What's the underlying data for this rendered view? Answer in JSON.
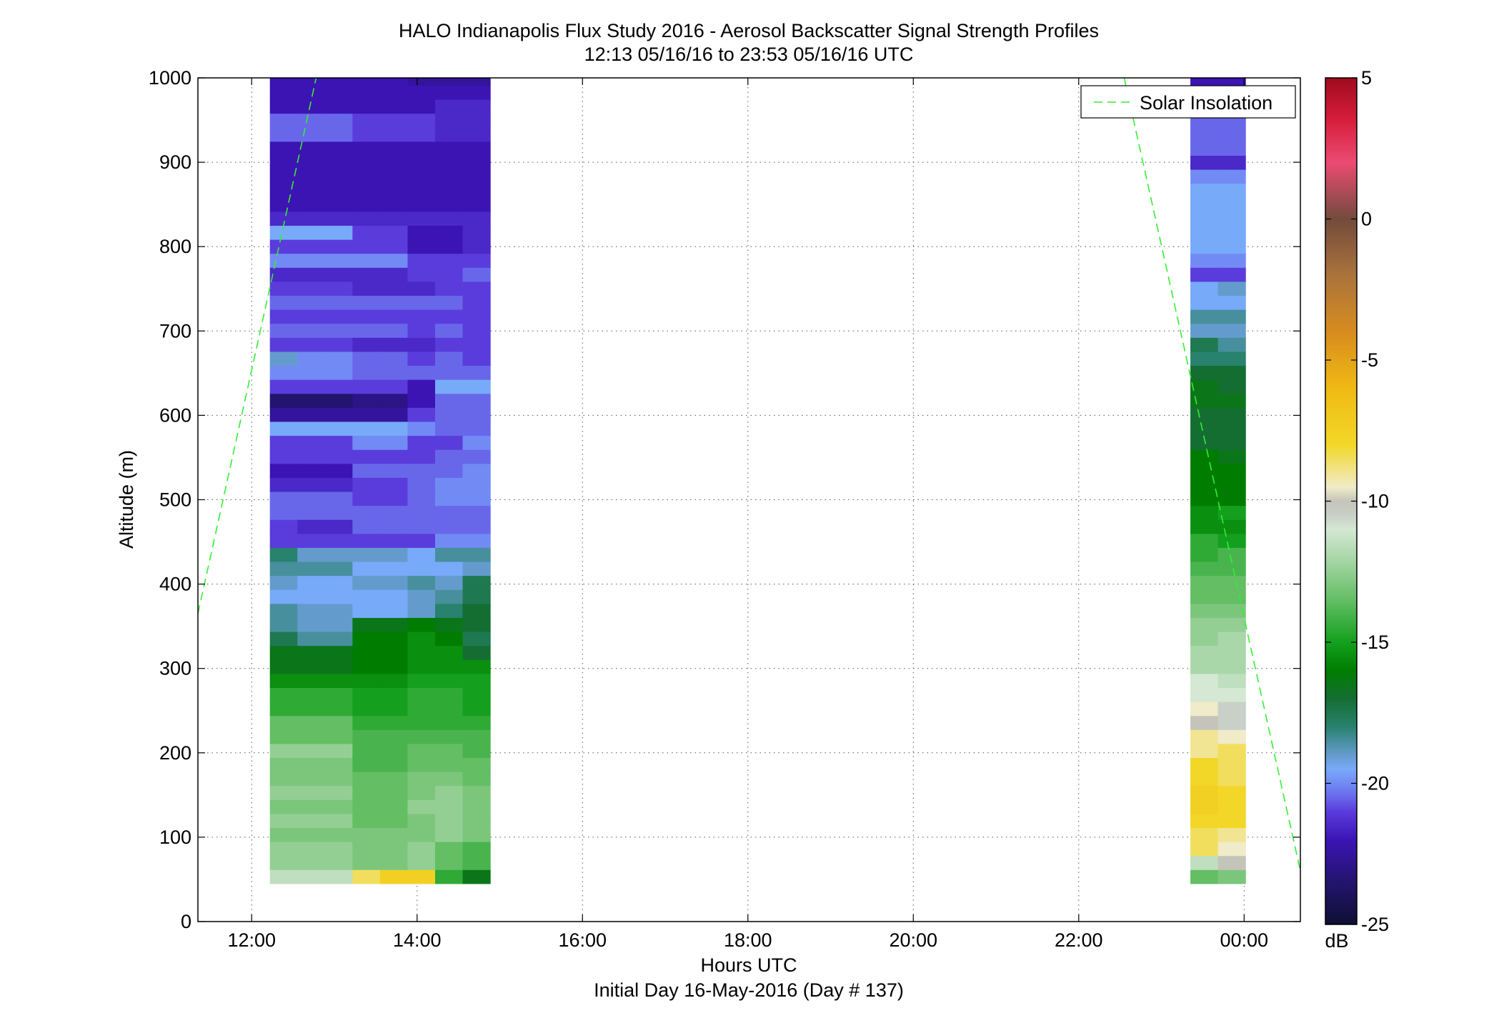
{
  "chart_data": {
    "type": "heatmap",
    "title": "HALO Indianapolis Flux Study 2016 - Aerosol Backscatter Signal Strength Profiles",
    "subtitle": "12:13 05/16/16 to 23:53 05/16/16  UTC",
    "xlabel": "Hours UTC",
    "xlabel2": "Initial Day 16-May-2016 (Day # 137)",
    "ylabel": "Altitude (m)",
    "xlim": [
      11.35,
      24.68
    ],
    "ylim": [
      0,
      1000
    ],
    "x_ticks": [
      {
        "value": 12,
        "label": "12:00"
      },
      {
        "value": 14,
        "label": "14:00"
      },
      {
        "value": 16,
        "label": "16:00"
      },
      {
        "value": 18,
        "label": "18:00"
      },
      {
        "value": 20,
        "label": "20:00"
      },
      {
        "value": 22,
        "label": "22:00"
      },
      {
        "value": 24,
        "label": "00:00"
      }
    ],
    "y_ticks": [
      {
        "value": 0,
        "label": "0"
      },
      {
        "value": 100,
        "label": "100"
      },
      {
        "value": 200,
        "label": "200"
      },
      {
        "value": 300,
        "label": "300"
      },
      {
        "value": 400,
        "label": "400"
      },
      {
        "value": 500,
        "label": "500"
      },
      {
        "value": 600,
        "label": "600"
      },
      {
        "value": 700,
        "label": "700"
      },
      {
        "value": 800,
        "label": "800"
      },
      {
        "value": 900,
        "label": "900"
      },
      {
        "value": 1000,
        "label": "1000"
      }
    ],
    "grid": true,
    "colorbar": {
      "unit": "dB",
      "range": [
        -25,
        5
      ],
      "ticks": [
        {
          "value": 5,
          "label": "5"
        },
        {
          "value": 0,
          "label": "0"
        },
        {
          "value": -5,
          "label": "-5"
        },
        {
          "value": -10,
          "label": "-10"
        },
        {
          "value": -15,
          "label": "-15"
        },
        {
          "value": -20,
          "label": "-20"
        },
        {
          "value": -25,
          "label": "-25"
        }
      ]
    },
    "legend": {
      "placement": "top-right",
      "entries": [
        {
          "label": "Solar Insolation",
          "style": "dashed",
          "color": "#33ee33"
        }
      ]
    },
    "solar_insolation_segments": [
      {
        "x": [
          11.35,
          12.78
        ],
        "y": [
          365,
          1000
        ]
      },
      {
        "x": [
          22.55,
          24.68
        ],
        "y": [
          1000,
          60
        ]
      }
    ],
    "heatmap_meta": {
      "y_start": 45,
      "y_step": 16.6,
      "segments": [
        {
          "x0": 12.22,
          "dx": 0.333,
          "ncols": 8
        },
        {
          "x0": 23.35,
          "dx": 0.333,
          "ncols": 2
        }
      ]
    },
    "heatmap_values": [
      [
        [
          -11.5,
          -12.5,
          -12.5,
          -13,
          -12.5,
          -13,
          -12.5,
          -13,
          -13,
          -12.5,
          -13.5,
          -13.5,
          -14.5,
          -14.5,
          -15.5,
          -16.5,
          -16.5,
          -17.5,
          -18.5,
          -18.5,
          -19.5,
          -19,
          -18.5,
          -18,
          -21,
          -21,
          -20.5,
          -20.5,
          -21.5,
          -22,
          -21,
          -21,
          -19.5,
          -22.5,
          -23.5,
          -21,
          -20,
          -19,
          -21,
          -20.5,
          -21,
          -20.5,
          -21,
          -21.5,
          -20,
          -21,
          -19.5,
          -21.5,
          -22,
          -22,
          -22,
          -22,
          -22,
          -20.5,
          -20.5,
          -22,
          -22,
          -22,
          -22,
          -21.5,
          -21.5,
          -22,
          -22.5
        ],
        [
          -11.5,
          -12.5,
          -12.5,
          -13,
          -12.5,
          -13,
          -12.5,
          -13,
          -13,
          -12.5,
          -13.5,
          -13.5,
          -14.5,
          -14.5,
          -15.5,
          -16.5,
          -16.5,
          -18.5,
          -19,
          -19,
          -19.5,
          -19.5,
          -18.5,
          -19,
          -21,
          -21.5,
          -20.5,
          -20.5,
          -21.5,
          -22,
          -21,
          -21,
          -19.5,
          -22.5,
          -23.5,
          -21,
          -20,
          -20,
          -21,
          -20.5,
          -21,
          -20.5,
          -21,
          -21.5,
          -20,
          -21,
          -19.5,
          -21.5,
          -22,
          -22,
          -22,
          -22,
          -22,
          -20.5,
          -20.5,
          -22,
          -22,
          -22,
          -22,
          -21.5,
          -21.5,
          -22,
          -22.5
        ],
        [
          -11.5,
          -12.5,
          -12.5,
          -13,
          -12.5,
          -13,
          -12.5,
          -13,
          -13,
          -12.5,
          -13.5,
          -13.5,
          -14.5,
          -14.5,
          -15.5,
          -16.5,
          -16.5,
          -18.5,
          -19,
          -19,
          -19.5,
          -19.5,
          -18.5,
          -19,
          -21,
          -21.5,
          -20.5,
          -20.5,
          -21.5,
          -22,
          -21,
          -21,
          -19.5,
          -22.5,
          -23.5,
          -21,
          -20,
          -20,
          -21,
          -20.5,
          -21,
          -20.5,
          -21,
          -21.5,
          -20,
          -21,
          -19.5,
          -21.5,
          -22,
          -22,
          -22,
          -22,
          -22,
          -20.5,
          -20.5,
          -22,
          -22,
          -22,
          -22,
          -21.5,
          -21.5,
          -22,
          -22.5
        ],
        [
          -8.5,
          -13,
          -13,
          -13,
          -13.5,
          -13.5,
          -13.5,
          -13.5,
          -14,
          -14,
          -14,
          -14.5,
          -15,
          -15,
          -15.5,
          -16,
          -16,
          -16,
          -16.5,
          -19.5,
          -19.5,
          -19,
          -19.5,
          -19,
          -21,
          -20.5,
          -20.5,
          -21,
          -21,
          -20.5,
          -21,
          -20,
          -19.5,
          -22.5,
          -23,
          -21,
          -20.5,
          -20.5,
          -21.5,
          -20.5,
          -21,
          -20.5,
          -21.5,
          -21.5,
          -20,
          -21,
          -21,
          -21.5,
          -22,
          -22,
          -22,
          -22,
          -22,
          -21,
          -21,
          -22,
          -22,
          -22,
          -23,
          -23,
          -23,
          -22.5,
          -22
        ],
        [
          -7.5,
          -13,
          -13,
          -13,
          -13.5,
          -13.5,
          -13.5,
          -13.5,
          -14,
          -14,
          -14,
          -14.5,
          -15,
          -15,
          -15.5,
          -16,
          -16,
          -16,
          -16.5,
          -19.5,
          -19.5,
          -19,
          -19.5,
          -19,
          -21,
          -20.5,
          -20.5,
          -21,
          -21,
          -20.5,
          -21,
          -20,
          -19.5,
          -22.5,
          -23,
          -21,
          -20.5,
          -20.5,
          -21.5,
          -20.5,
          -21,
          -20.5,
          -21.5,
          -21.5,
          -20,
          -21,
          -21,
          -21.5,
          -22,
          -22,
          -22,
          -22,
          -22,
          -21,
          -21,
          -22,
          -22,
          -22,
          -23,
          -23,
          -23,
          -22.5,
          -22
        ],
        [
          -7.5,
          -12.5,
          -12.5,
          -13,
          -13,
          -12.5,
          -13,
          -13,
          -13.5,
          -13.5,
          -14,
          -14.5,
          -14.5,
          -14.5,
          -15,
          -15.5,
          -15.5,
          -15.5,
          -16,
          -19,
          -19,
          -18.5,
          -19.5,
          -19.5,
          -21,
          -20.5,
          -20.5,
          -20.5,
          -20.5,
          -20.5,
          -21,
          -21,
          -20,
          -21,
          -22,
          -22,
          -20.5,
          -21,
          -21.5,
          -21,
          -21,
          -20.5,
          -21.5,
          -21,
          -21,
          -22,
          -22,
          -21.5,
          -22,
          -22,
          -22,
          -22,
          -22,
          -21,
          -21,
          -22,
          -22,
          -22.5,
          -23,
          -23,
          -23,
          -22,
          -22
        ],
        [
          -14.5,
          -13.5,
          -13.5,
          -12.5,
          -12.5,
          -12.5,
          -12.5,
          -13,
          -13.5,
          -13.5,
          -14,
          -14.5,
          -14.5,
          -14.5,
          -15,
          -15.5,
          -15.5,
          -16,
          -16.5,
          -18,
          -18.5,
          -19,
          -19.5,
          -18.5,
          -20,
          -20.5,
          -20.5,
          -20,
          -20,
          -20.5,
          -20.5,
          -21,
          -20.5,
          -20.5,
          -20.5,
          -19.5,
          -20.5,
          -20.5,
          -21,
          -20.5,
          -21,
          -20.5,
          -21,
          -21,
          -21,
          -22,
          -22,
          -21.5,
          -22,
          -22,
          -22,
          -22,
          -22,
          -21.5,
          -21.5,
          -21.5,
          -22,
          -22.5,
          -23,
          -23,
          -23,
          -21.5,
          -21.5
        ],
        [
          -16.5,
          -14,
          -14,
          -13,
          -13,
          -13,
          -13,
          -13.5,
          -13.5,
          -14,
          -14,
          -14.5,
          -15,
          -15,
          -15,
          -15.5,
          -17,
          -17.5,
          -17,
          -17,
          -17.5,
          -17.5,
          -19,
          -18.5,
          -20,
          -20.5,
          -20.5,
          -20,
          -20,
          -20,
          -20.5,
          -20,
          -20.5,
          -20.5,
          -20.5,
          -19.5,
          -20.5,
          -21,
          -21,
          -21,
          -21,
          -21,
          -21,
          -20.5,
          -21,
          -21.5,
          -21.5,
          -21.5,
          -22,
          -22,
          -22,
          -22,
          -22,
          -21.5,
          -21.5,
          -21.5,
          -22,
          -22.5,
          -22.5,
          -22.5,
          -22.5,
          -22,
          -22
        ]
      ],
      [
        [
          -13.5,
          -11.5,
          -8.5,
          -8.5,
          -8,
          -7.5,
          -7.5,
          -8,
          -8,
          -9,
          -9,
          -10,
          -9.5,
          -11,
          -11,
          -12,
          -12,
          -12.5,
          -12.5,
          -13,
          -13.5,
          -13.5,
          -14,
          -14.5,
          -14.5,
          -15.5,
          -15.5,
          -16,
          -16,
          -16,
          -16,
          -17,
          -17,
          -17,
          -16.5,
          -16.5,
          -17,
          -18,
          -17.5,
          -19,
          -18.5,
          -19.5,
          -19.5,
          -21,
          -20,
          -19.5,
          -19.5,
          -19.5,
          -19.5,
          -19.5,
          -20,
          -21.5,
          -20.5,
          -20.5,
          -20.5,
          -21,
          -21,
          -22
        ],
        [
          -13,
          -10,
          -9.5,
          -9,
          -8,
          -8,
          -8,
          -8.5,
          -8.5,
          -8.5,
          -9.5,
          -10.5,
          -10.5,
          -11,
          -11.5,
          -12,
          -12,
          -12,
          -12.5,
          -13,
          -13.5,
          -13.5,
          -14,
          -14,
          -15,
          -15.5,
          -15,
          -16,
          -16,
          -16,
          -16.5,
          -17,
          -17,
          -17,
          -16.5,
          -17,
          -17,
          -18,
          -18.5,
          -19,
          -18.5,
          -19.5,
          -19,
          -21,
          -20,
          -19.5,
          -19.5,
          -19.5,
          -19.5,
          -19.5,
          -20,
          -21.5,
          -20.5,
          -20.5,
          -20.5,
          -21,
          -21,
          -22
        ]
      ]
    ]
  }
}
